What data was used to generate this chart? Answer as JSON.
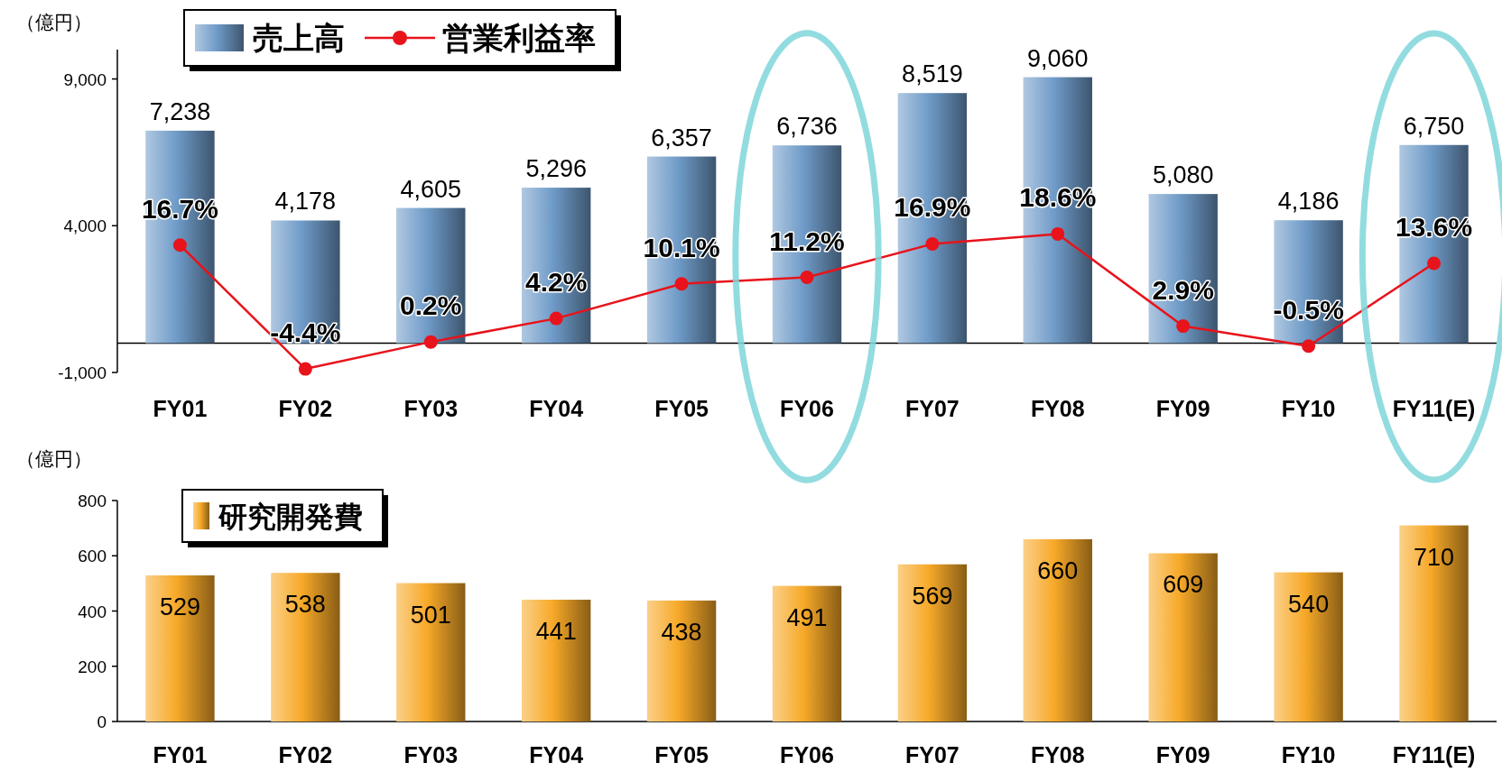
{
  "chart_data": [
    {
      "type": "bar",
      "ylabel": "（億円）",
      "categories": [
        "FY01",
        "FY02",
        "FY03",
        "FY04",
        "FY05",
        "FY06",
        "FY07",
        "FY08",
        "FY09",
        "FY10",
        "FY11(E)"
      ],
      "ylim": [
        -1000,
        10000
      ],
      "yticks": [
        {
          "value": 9000,
          "label": "9,000"
        },
        {
          "value": 4000,
          "label": "4,000"
        },
        {
          "value": -1000,
          "label": "-1,000"
        }
      ],
      "y2lim": [
        -5,
        50
      ],
      "series": [
        {
          "name": "売上高",
          "type": "bar",
          "color": "#6f9bc8",
          "values": [
            7238,
            4178,
            4605,
            5296,
            6357,
            6736,
            8519,
            9060,
            5080,
            4186,
            6750
          ],
          "value_labels": [
            "7,238",
            "4,178",
            "4,605",
            "5,296",
            "6,357",
            "6,736",
            "8,519",
            "9,060",
            "5,080",
            "4,186",
            "6,750"
          ]
        },
        {
          "name": "営業利益率",
          "type": "line",
          "axis": "y2",
          "color": "#e8131b",
          "values": [
            16.7,
            -4.4,
            0.2,
            4.2,
            10.1,
            11.2,
            16.9,
            18.6,
            2.9,
            -0.5,
            13.6
          ],
          "value_labels": [
            "16.7%",
            "-4.4%",
            "0.2%",
            "4.2%",
            "10.1%",
            "11.2%",
            "16.9%",
            "18.6%",
            "2.9%",
            "-0.5%",
            "13.6%"
          ]
        }
      ],
      "marker": "circle",
      "legend": "top left",
      "grid": false
    },
    {
      "type": "bar",
      "ylabel": "（億円）",
      "categories": [
        "FY01",
        "FY02",
        "FY03",
        "FY04",
        "FY05",
        "FY06",
        "FY07",
        "FY08",
        "FY09",
        "FY10",
        "FY11(E)"
      ],
      "ylim": [
        0,
        800
      ],
      "yticks": [
        0,
        200,
        400,
        600,
        800
      ],
      "series": [
        {
          "name": "研究開発費",
          "color": "#f7a928",
          "values": [
            529,
            538,
            501,
            441,
            438,
            491,
            569,
            660,
            609,
            540,
            710
          ]
        }
      ],
      "data_labels": true,
      "legend": "top left",
      "grid": false
    }
  ]
}
